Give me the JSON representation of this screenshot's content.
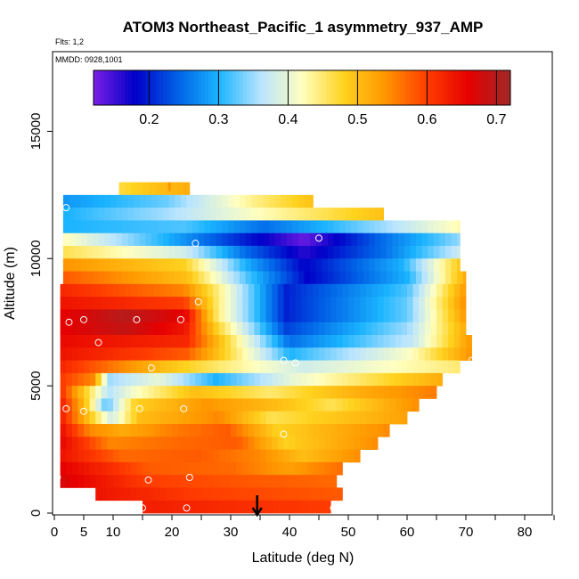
{
  "chart_data": {
    "type": "heatmap",
    "title": "ATOM3 Northeast_Pacific_1 asymmetry_937_AMP",
    "subtitle_flights": "Flts: 1,2",
    "subtitle_dates": "MMDD: 0928,1001",
    "xlabel": "Latitude (deg N)",
    "ylabel": "Altitude (m)",
    "xlim": [
      0,
      85
    ],
    "ylim": [
      0,
      17500
    ],
    "x_ticks": [
      0,
      5,
      10,
      20,
      30,
      40,
      50,
      60,
      70,
      80
    ],
    "y_ticks": [
      0,
      5000,
      10000,
      15000
    ],
    "colorbar": {
      "min": 0.12,
      "max": 0.72,
      "ticks": [
        0.2,
        0.3,
        0.4,
        0.5,
        0.6,
        0.7
      ],
      "colors": [
        "#7a1fe6",
        "#0000c8",
        "#0060e6",
        "#1ab4ff",
        "#b8e4ff",
        "#ffffc0",
        "#ffd21e",
        "#ff9600",
        "#ff3c00",
        "#e60000",
        "#a02828"
      ]
    },
    "altitude_rows": [
      {
        "alt": 12500,
        "lat_min": 11,
        "lat_max": 23,
        "profile": [
          [
            0,
            0.47
          ],
          [
            0.5,
            0.5
          ],
          [
            1,
            0.52
          ]
        ]
      },
      {
        "alt": 12000,
        "lat_min": 1.5,
        "lat_max": 44,
        "profile": [
          [
            0,
            0.28
          ],
          [
            0.4,
            0.33
          ],
          [
            0.75,
            0.44
          ],
          [
            1,
            0.5
          ]
        ]
      },
      {
        "alt": 11500,
        "lat_min": 1.5,
        "lat_max": 56,
        "profile": [
          [
            0,
            0.3
          ],
          [
            0.3,
            0.35
          ],
          [
            0.6,
            0.42
          ],
          [
            1,
            0.5
          ]
        ]
      },
      {
        "alt": 11000,
        "lat_min": 1.5,
        "lat_max": 69,
        "profile": [
          [
            0,
            0.3
          ],
          [
            0.3,
            0.32
          ],
          [
            0.5,
            0.25
          ],
          [
            0.8,
            0.35
          ],
          [
            1,
            0.43
          ]
        ]
      },
      {
        "alt": 10500,
        "lat_min": 1.5,
        "lat_max": 69,
        "profile": [
          [
            0,
            0.42
          ],
          [
            0.25,
            0.3
          ],
          [
            0.45,
            0.2
          ],
          [
            0.6,
            0.13
          ],
          [
            0.8,
            0.25
          ],
          [
            1,
            0.35
          ]
        ]
      },
      {
        "alt": 10000,
        "lat_min": 1.5,
        "lat_max": 69,
        "profile": [
          [
            0,
            0.46
          ],
          [
            0.3,
            0.38
          ],
          [
            0.45,
            0.25
          ],
          [
            0.6,
            0.16
          ],
          [
            0.8,
            0.25
          ],
          [
            1,
            0.38
          ]
        ]
      },
      {
        "alt": 9500,
        "lat_min": 1.5,
        "lat_max": 69,
        "profile": [
          [
            0,
            0.54
          ],
          [
            0.3,
            0.48
          ],
          [
            0.45,
            0.3
          ],
          [
            0.6,
            0.18
          ],
          [
            0.85,
            0.3
          ],
          [
            1,
            0.5
          ]
        ]
      },
      {
        "alt": 9000,
        "lat_min": 1.5,
        "lat_max": 70,
        "profile": [
          [
            0,
            0.58
          ],
          [
            0.3,
            0.5
          ],
          [
            0.45,
            0.32
          ],
          [
            0.6,
            0.18
          ],
          [
            0.85,
            0.3
          ],
          [
            1,
            0.53
          ]
        ]
      },
      {
        "alt": 8500,
        "lat_min": 1,
        "lat_max": 70,
        "profile": [
          [
            0,
            0.62
          ],
          [
            0.3,
            0.55
          ],
          [
            0.4,
            0.42
          ],
          [
            0.55,
            0.2
          ],
          [
            0.85,
            0.32
          ],
          [
            1,
            0.55
          ]
        ]
      },
      {
        "alt": 8000,
        "lat_min": 1,
        "lat_max": 70,
        "profile": [
          [
            0,
            0.64
          ],
          [
            0.3,
            0.6
          ],
          [
            0.38,
            0.45
          ],
          [
            0.55,
            0.2
          ],
          [
            0.85,
            0.33
          ],
          [
            1,
            0.56
          ]
        ]
      },
      {
        "alt": 7500,
        "lat_min": 1,
        "lat_max": 70,
        "profile": [
          [
            0,
            0.66
          ],
          [
            0.15,
            0.7
          ],
          [
            0.3,
            0.66
          ],
          [
            0.38,
            0.45
          ],
          [
            0.55,
            0.2
          ],
          [
            0.85,
            0.33
          ],
          [
            1,
            0.55
          ]
        ]
      },
      {
        "alt": 7000,
        "lat_min": 1,
        "lat_max": 70,
        "profile": [
          [
            0,
            0.66
          ],
          [
            0.15,
            0.69
          ],
          [
            0.3,
            0.64
          ],
          [
            0.38,
            0.48
          ],
          [
            0.55,
            0.22
          ],
          [
            0.85,
            0.35
          ],
          [
            1,
            0.53
          ]
        ]
      },
      {
        "alt": 6500,
        "lat_min": 1,
        "lat_max": 71,
        "profile": [
          [
            0,
            0.65
          ],
          [
            0.3,
            0.62
          ],
          [
            0.38,
            0.5
          ],
          [
            0.55,
            0.25
          ],
          [
            0.85,
            0.37
          ],
          [
            1,
            0.55
          ]
        ]
      },
      {
        "alt": 6000,
        "lat_min": 1,
        "lat_max": 71,
        "profile": [
          [
            0,
            0.64
          ],
          [
            0.3,
            0.58
          ],
          [
            0.42,
            0.45
          ],
          [
            0.55,
            0.3
          ],
          [
            0.85,
            0.42
          ],
          [
            1,
            0.55
          ]
        ]
      },
      {
        "alt": 5500,
        "lat_min": 1,
        "lat_max": 69,
        "profile": [
          [
            0,
            0.62
          ],
          [
            0.25,
            0.5
          ],
          [
            0.42,
            0.44
          ],
          [
            0.6,
            0.38
          ],
          [
            1,
            0.45
          ]
        ]
      },
      {
        "alt": 5000,
        "lat_min": 1,
        "lat_max": 66,
        "profile": [
          [
            0,
            0.6
          ],
          [
            0.08,
            0.55
          ],
          [
            0.12,
            0.35
          ],
          [
            0.25,
            0.4
          ],
          [
            0.4,
            0.3
          ],
          [
            0.6,
            0.4
          ],
          [
            1,
            0.52
          ]
        ]
      },
      {
        "alt": 4500,
        "lat_min": 1,
        "lat_max": 65,
        "profile": [
          [
            0,
            0.6
          ],
          [
            0.05,
            0.5
          ],
          [
            0.12,
            0.36
          ],
          [
            0.2,
            0.42
          ],
          [
            0.35,
            0.5
          ],
          [
            0.55,
            0.45
          ],
          [
            0.8,
            0.52
          ],
          [
            1,
            0.56
          ]
        ]
      },
      {
        "alt": 4000,
        "lat_min": 1,
        "lat_max": 62,
        "profile": [
          [
            0,
            0.62
          ],
          [
            0.06,
            0.5
          ],
          [
            0.12,
            0.32
          ],
          [
            0.2,
            0.48
          ],
          [
            0.4,
            0.54
          ],
          [
            0.6,
            0.5
          ],
          [
            0.75,
            0.46
          ],
          [
            1,
            0.55
          ]
        ]
      },
      {
        "alt": 3500,
        "lat_min": 1,
        "lat_max": 60,
        "profile": [
          [
            0,
            0.62
          ],
          [
            0.06,
            0.52
          ],
          [
            0.14,
            0.38
          ],
          [
            0.22,
            0.5
          ],
          [
            0.45,
            0.55
          ],
          [
            0.6,
            0.46
          ],
          [
            1,
            0.53
          ]
        ]
      },
      {
        "alt": 3000,
        "lat_min": 1,
        "lat_max": 57,
        "profile": [
          [
            0,
            0.64
          ],
          [
            0.08,
            0.55
          ],
          [
            0.18,
            0.52
          ],
          [
            0.35,
            0.56
          ],
          [
            0.5,
            0.58
          ],
          [
            0.65,
            0.48
          ],
          [
            1,
            0.55
          ]
        ]
      },
      {
        "alt": 2500,
        "lat_min": 1,
        "lat_max": 55,
        "profile": [
          [
            0,
            0.65
          ],
          [
            0.15,
            0.55
          ],
          [
            0.35,
            0.57
          ],
          [
            0.55,
            0.58
          ],
          [
            0.7,
            0.48
          ],
          [
            1,
            0.55
          ]
        ]
      },
      {
        "alt": 2000,
        "lat_min": 1,
        "lat_max": 52,
        "profile": [
          [
            0,
            0.64
          ],
          [
            0.2,
            0.57
          ],
          [
            0.45,
            0.58
          ],
          [
            0.65,
            0.55
          ],
          [
            0.8,
            0.5
          ],
          [
            1,
            0.55
          ]
        ]
      },
      {
        "alt": 1500,
        "lat_min": 1,
        "lat_max": 49,
        "profile": [
          [
            0,
            0.66
          ],
          [
            0.3,
            0.58
          ],
          [
            0.6,
            0.57
          ],
          [
            0.8,
            0.53
          ],
          [
            1,
            0.57
          ]
        ]
      },
      {
        "alt": 1000,
        "lat_min": 1,
        "lat_max": 48,
        "profile": [
          [
            0,
            0.67
          ],
          [
            0.3,
            0.6
          ],
          [
            0.7,
            0.58
          ],
          [
            1,
            0.57
          ]
        ]
      },
      {
        "alt": 500,
        "lat_min": 7,
        "lat_max": 49,
        "profile": [
          [
            0,
            0.64
          ],
          [
            0.4,
            0.6
          ],
          [
            1,
            0.58
          ]
        ]
      },
      {
        "alt": 0,
        "lat_min": 15,
        "lat_max": 47,
        "profile": [
          [
            0,
            0.63
          ],
          [
            1,
            0.6
          ]
        ]
      }
    ],
    "points": [
      {
        "lat": 2,
        "alt": 12000
      },
      {
        "lat": 24,
        "alt": 10600
      },
      {
        "lat": 45,
        "alt": 10800
      },
      {
        "lat": 24.5,
        "alt": 8300
      },
      {
        "lat": 2.5,
        "alt": 7500
      },
      {
        "lat": 5,
        "alt": 7600
      },
      {
        "lat": 14,
        "alt": 7600
      },
      {
        "lat": 21.5,
        "alt": 7600
      },
      {
        "lat": 7.5,
        "alt": 6700
      },
      {
        "lat": 16.5,
        "alt": 5700
      },
      {
        "lat": 39,
        "alt": 6000
      },
      {
        "lat": 41,
        "alt": 5900
      },
      {
        "lat": 71,
        "alt": 6000
      },
      {
        "lat": 2,
        "alt": 4100
      },
      {
        "lat": 5,
        "alt": 4000
      },
      {
        "lat": 14.5,
        "alt": 4100
      },
      {
        "lat": 22,
        "alt": 4100
      },
      {
        "lat": 39,
        "alt": 3100
      },
      {
        "lat": 0.5,
        "alt": 1400
      },
      {
        "lat": 16,
        "alt": 1300
      },
      {
        "lat": 23,
        "alt": 1400
      },
      {
        "lat": 15,
        "alt": 200
      },
      {
        "lat": 22.5,
        "alt": 200
      },
      {
        "lat": 47.5,
        "alt": 200
      }
    ],
    "arrow_lat": 34.5,
    "top_marker_lat": 19.5
  }
}
